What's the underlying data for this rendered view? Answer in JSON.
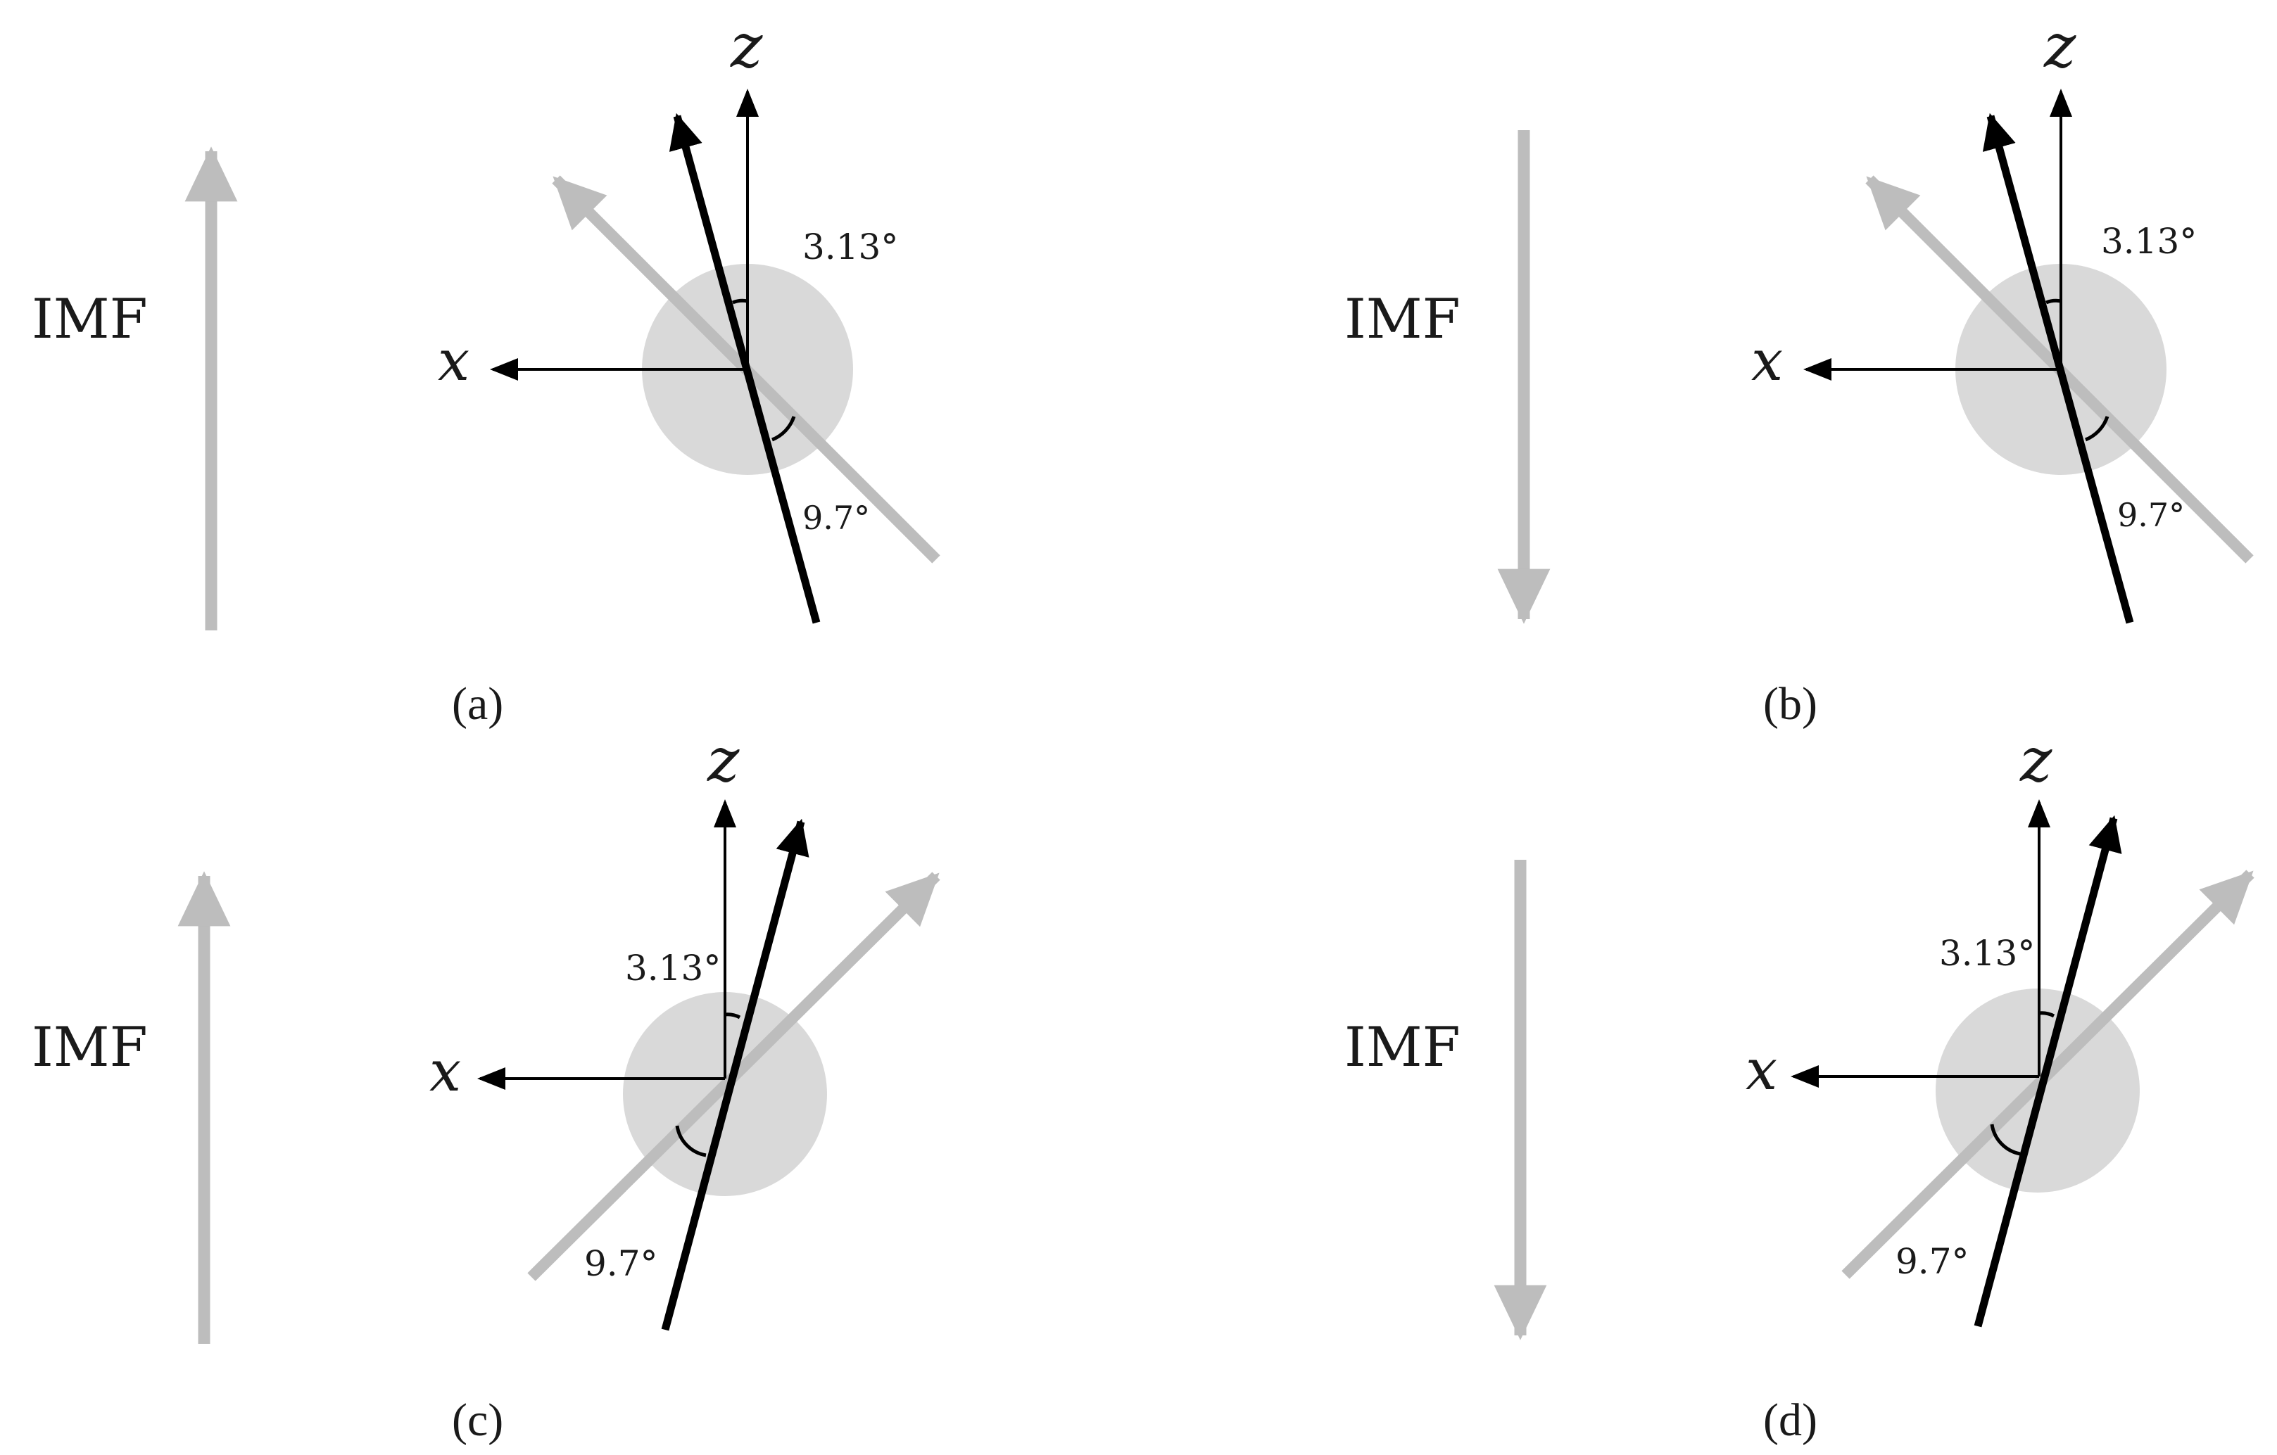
{
  "imf_label": "IMF",
  "axis_x": "x",
  "axis_z": "z",
  "panels": [
    {
      "id": "a",
      "caption": "(a)",
      "imf_direction": "up",
      "axis_tilt": "left",
      "angle_small": "3.13°",
      "angle_large": "9.7°"
    },
    {
      "id": "b",
      "caption": "(b)",
      "imf_direction": "down",
      "axis_tilt": "left",
      "angle_small": "3.13°",
      "angle_large": "9.7°"
    },
    {
      "id": "c",
      "caption": "(c)",
      "imf_direction": "up",
      "axis_tilt": "right",
      "angle_small": "3.13°",
      "angle_large": "9.7°"
    },
    {
      "id": "d",
      "caption": "(d)",
      "imf_direction": "down",
      "axis_tilt": "right",
      "angle_small": "3.13°",
      "angle_large": "9.7°"
    }
  ],
  "colors": {
    "imf_arrow": "#bdbdbd",
    "planet_disk": "#d9d9d9",
    "dark_axis": "#000000",
    "light_axis": "#bdbdbd",
    "text": "#1a1a1a"
  }
}
